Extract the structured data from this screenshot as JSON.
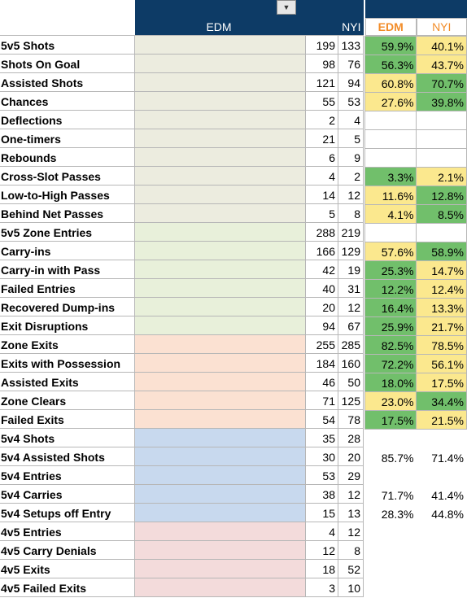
{
  "header": {
    "team1": "EDM",
    "team2": "NYI",
    "pct_team1": "EDM",
    "pct_team2": "NYI"
  },
  "rows": [
    {
      "label": "5v5 Shots",
      "edm": "199",
      "nyi": "133",
      "p1": "59.9%",
      "p2": "40.1%",
      "c1": "hi",
      "c2": "lo",
      "g": "beige"
    },
    {
      "label": "Shots On Goal",
      "edm": "98",
      "nyi": "76",
      "p1": "56.3%",
      "p2": "43.7%",
      "c1": "hi",
      "c2": "lo",
      "g": "beige"
    },
    {
      "label": "Assisted Shots",
      "edm": "121",
      "nyi": "94",
      "p1": "60.8%",
      "p2": "70.7%",
      "c1": "lo",
      "c2": "hi",
      "g": "beige"
    },
    {
      "label": "Chances",
      "edm": "55",
      "nyi": "53",
      "p1": "27.6%",
      "p2": "39.8%",
      "c1": "lo",
      "c2": "hi",
      "g": "beige"
    },
    {
      "label": "Deflections",
      "edm": "2",
      "nyi": "4",
      "p1": "",
      "p2": "",
      "c1": "blank",
      "c2": "blank",
      "g": "beige"
    },
    {
      "label": "One-timers",
      "edm": "21",
      "nyi": "5",
      "p1": "",
      "p2": "",
      "c1": "blank",
      "c2": "blank",
      "g": "beige"
    },
    {
      "label": "Rebounds",
      "edm": "6",
      "nyi": "9",
      "p1": "",
      "p2": "",
      "c1": "blank",
      "c2": "blank",
      "g": "beige"
    },
    {
      "label": "Cross-Slot Passes",
      "edm": "4",
      "nyi": "2",
      "p1": "3.3%",
      "p2": "2.1%",
      "c1": "hi",
      "c2": "lo",
      "g": "beige"
    },
    {
      "label": "Low-to-High Passes",
      "edm": "14",
      "nyi": "12",
      "p1": "11.6%",
      "p2": "12.8%",
      "c1": "lo",
      "c2": "hi",
      "g": "beige"
    },
    {
      "label": "Behind Net Passes",
      "edm": "5",
      "nyi": "8",
      "p1": "4.1%",
      "p2": "8.5%",
      "c1": "lo",
      "c2": "hi",
      "g": "beige"
    },
    {
      "label": "5v5 Zone Entries",
      "edm": "288",
      "nyi": "219",
      "p1": "",
      "p2": "",
      "c1": "blank",
      "c2": "blank",
      "g": "green"
    },
    {
      "label": "Carry-ins",
      "edm": "166",
      "nyi": "129",
      "p1": "57.6%",
      "p2": "58.9%",
      "c1": "lo",
      "c2": "hi",
      "g": "green"
    },
    {
      "label": "Carry-in with Pass",
      "edm": "42",
      "nyi": "19",
      "p1": "25.3%",
      "p2": "14.7%",
      "c1": "hi",
      "c2": "lo",
      "g": "green"
    },
    {
      "label": "Failed Entries",
      "edm": "40",
      "nyi": "31",
      "p1": "12.2%",
      "p2": "12.4%",
      "c1": "hi",
      "c2": "lo",
      "g": "green"
    },
    {
      "label": "Recovered Dump-ins",
      "edm": "20",
      "nyi": "12",
      "p1": "16.4%",
      "p2": "13.3%",
      "c1": "hi",
      "c2": "lo",
      "g": "green"
    },
    {
      "label": "Exit Disruptions",
      "edm": "94",
      "nyi": "67",
      "p1": "25.9%",
      "p2": "21.7%",
      "c1": "hi",
      "c2": "lo",
      "g": "green"
    },
    {
      "label": "Zone Exits",
      "edm": "255",
      "nyi": "285",
      "p1": "82.5%",
      "p2": "78.5%",
      "c1": "hi",
      "c2": "lo",
      "g": "peach"
    },
    {
      "label": "Exits with Possession",
      "edm": "184",
      "nyi": "160",
      "p1": "72.2%",
      "p2": "56.1%",
      "c1": "hi",
      "c2": "lo",
      "g": "peach"
    },
    {
      "label": "Assisted Exits",
      "edm": "46",
      "nyi": "50",
      "p1": "18.0%",
      "p2": "17.5%",
      "c1": "hi",
      "c2": "lo",
      "g": "peach"
    },
    {
      "label": "Zone Clears",
      "edm": "71",
      "nyi": "125",
      "p1": "23.0%",
      "p2": "34.4%",
      "c1": "lo",
      "c2": "hi",
      "g": "peach"
    },
    {
      "label": "Failed Exits",
      "edm": "54",
      "nyi": "78",
      "p1": "17.5%",
      "p2": "21.5%",
      "c1": "hi",
      "c2": "lo",
      "g": "peach"
    },
    {
      "label": "5v4 Shots",
      "edm": "35",
      "nyi": "28",
      "p1": "",
      "p2": "",
      "c1": "plain",
      "c2": "plain",
      "g": "blue"
    },
    {
      "label": "5v4 Assisted Shots",
      "edm": "30",
      "nyi": "20",
      "p1": "85.7%",
      "p2": "71.4%",
      "c1": "plain",
      "c2": "plain",
      "g": "blue"
    },
    {
      "label": "5v4 Entries",
      "edm": "53",
      "nyi": "29",
      "p1": "",
      "p2": "",
      "c1": "plain",
      "c2": "plain",
      "g": "blue"
    },
    {
      "label": "5v4 Carries",
      "edm": "38",
      "nyi": "12",
      "p1": "71.7%",
      "p2": "41.4%",
      "c1": "plain",
      "c2": "plain",
      "g": "blue"
    },
    {
      "label": "5v4 Setups off Entry",
      "edm": "15",
      "nyi": "13",
      "p1": "28.3%",
      "p2": "44.8%",
      "c1": "plain",
      "c2": "plain",
      "g": "blue"
    },
    {
      "label": "4v5 Entries",
      "edm": "4",
      "nyi": "12",
      "p1": "",
      "p2": "",
      "c1": "plain",
      "c2": "plain",
      "g": "pink"
    },
    {
      "label": "4v5 Carry Denials",
      "edm": "12",
      "nyi": "8",
      "p1": "",
      "p2": "",
      "c1": "plain",
      "c2": "plain",
      "g": "pink"
    },
    {
      "label": "4v5 Exits",
      "edm": "18",
      "nyi": "52",
      "p1": "",
      "p2": "",
      "c1": "plain",
      "c2": "plain",
      "g": "pink"
    },
    {
      "label": "4v5 Failed Exits",
      "edm": "3",
      "nyi": "10",
      "p1": "",
      "p2": "",
      "c1": "plain",
      "c2": "plain",
      "g": "pink"
    }
  ]
}
